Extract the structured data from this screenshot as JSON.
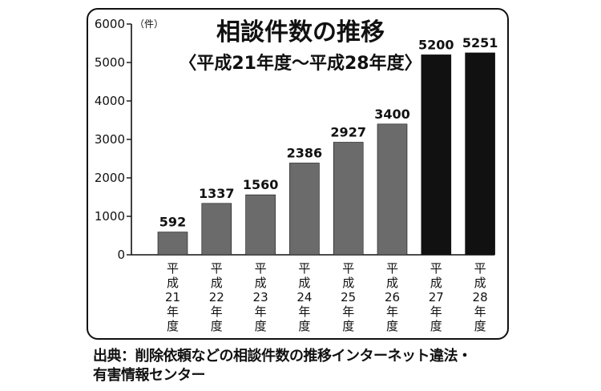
{
  "chart_data": {
    "type": "bar",
    "title": "相談件数の推移",
    "subtitle": "〈平成21年度〜平成28年度〉",
    "ylabel": "（件）",
    "ylim": [
      0,
      6000
    ],
    "yticks": [
      0,
      1000,
      2000,
      3000,
      4000,
      5000,
      6000
    ],
    "categories": [
      "平成21年度",
      "平成22年度",
      "平成23年度",
      "平成24年度",
      "平成25年度",
      "平成26年度",
      "平成27年度",
      "平成28年度"
    ],
    "category_display": [
      [
        "平",
        "成",
        "21",
        "年",
        "度"
      ],
      [
        "平",
        "成",
        "22",
        "年",
        "度"
      ],
      [
        "平",
        "成",
        "23",
        "年",
        "度"
      ],
      [
        "平",
        "成",
        "24",
        "年",
        "度"
      ],
      [
        "平",
        "成",
        "25",
        "年",
        "度"
      ],
      [
        "平",
        "成",
        "26",
        "年",
        "度"
      ],
      [
        "平",
        "成",
        "27",
        "年",
        "度"
      ],
      [
        "平",
        "成",
        "28",
        "年",
        "度"
      ]
    ],
    "values": [
      592,
      1337,
      1560,
      2386,
      2927,
      3400,
      5200,
      5251
    ],
    "colors": [
      "#6b6b6b",
      "#6b6b6b",
      "#6b6b6b",
      "#6b6b6b",
      "#6b6b6b",
      "#6b6b6b",
      "#111111",
      "#111111"
    ],
    "grid": false,
    "legend": "none"
  },
  "source": "出典：削除依頼などの相談件数の推移インターネット違法・\n有害情報センター"
}
